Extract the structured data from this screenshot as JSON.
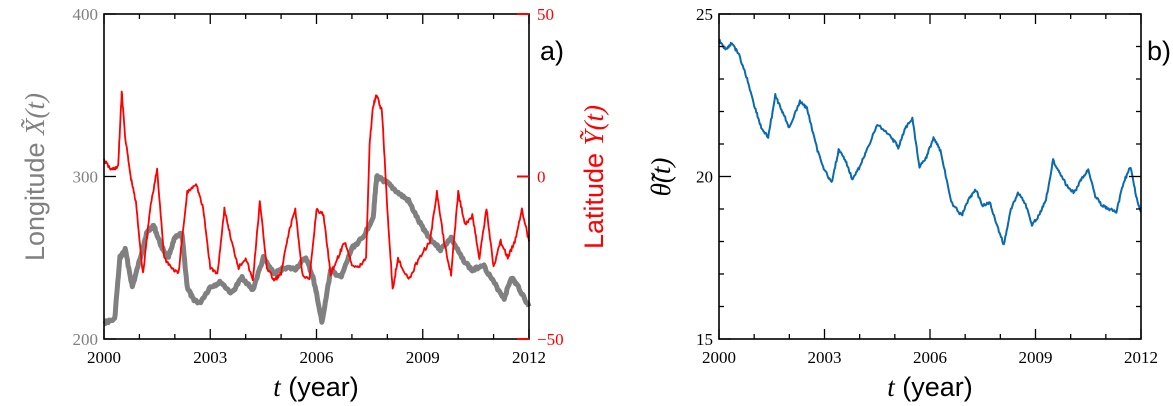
{
  "chart_data": [
    {
      "type": "line",
      "panel_label": "a)",
      "xlim": [
        2000,
        2012
      ],
      "x_ticks": [
        "2000",
        "2003",
        "2006",
        "2009",
        "2012"
      ],
      "xlabel": {
        "var": "t",
        "text": " (year)"
      },
      "y_left": {
        "label_text": "Longitude ",
        "label_math": "X̃(t)",
        "lim": [
          200,
          400
        ],
        "ticks": [
          "200",
          "300",
          "400"
        ],
        "color": "#808080"
      },
      "y_right": {
        "label_text": "Latitude ",
        "label_math": "Ỹ(t)",
        "lim": [
          -50,
          50
        ],
        "ticks": [
          "−50",
          "0",
          "50"
        ],
        "color": "#ff0000"
      },
      "series": [
        {
          "color": "#808080",
          "axis": "left",
          "x": [
            2000.0,
            2000.3,
            2000.45,
            2000.6,
            2000.8,
            2001.0,
            2001.2,
            2001.4,
            2001.6,
            2001.8,
            2002.0,
            2002.2,
            2002.35,
            2002.5,
            2002.7,
            2003.0,
            2003.3,
            2003.6,
            2003.9,
            2004.2,
            2004.5,
            2004.8,
            2005.1,
            2005.4,
            2005.7,
            2005.9,
            2006.0,
            2006.15,
            2006.4,
            2006.7,
            2007.0,
            2007.3,
            2007.6,
            2007.7,
            2007.85,
            2008.0,
            2008.3,
            2008.6,
            2008.9,
            2009.2,
            2009.5,
            2009.8,
            2010.1,
            2010.4,
            2010.7,
            2011.0,
            2011.3,
            2011.5,
            2011.7,
            2012.0
          ],
          "values": [
            210,
            212,
            250,
            255,
            232,
            248,
            265,
            270,
            258,
            250,
            262,
            265,
            232,
            225,
            222,
            232,
            235,
            228,
            238,
            230,
            250,
            240,
            244,
            243,
            250,
            238,
            228,
            210,
            242,
            238,
            256,
            262,
            275,
            300,
            298,
            296,
            290,
            285,
            272,
            262,
            255,
            262,
            250,
            242,
            246,
            235,
            225,
            238,
            232,
            220
          ]
        },
        {
          "color": "#ff0000",
          "axis": "right",
          "x": [
            2000.0,
            2000.2,
            2000.4,
            2000.5,
            2000.6,
            2000.75,
            2000.9,
            2001.1,
            2001.3,
            2001.5,
            2001.7,
            2001.9,
            2002.1,
            2002.35,
            2002.6,
            2002.8,
            2003.0,
            2003.2,
            2003.4,
            2003.6,
            2003.8,
            2004.0,
            2004.2,
            2004.4,
            2004.6,
            2004.8,
            2005.0,
            2005.2,
            2005.4,
            2005.6,
            2005.8,
            2006.0,
            2006.2,
            2006.4,
            2006.6,
            2006.8,
            2007.0,
            2007.2,
            2007.4,
            2007.5,
            2007.6,
            2007.7,
            2007.85,
            2008.0,
            2008.15,
            2008.3,
            2008.6,
            2008.9,
            2009.2,
            2009.4,
            2009.6,
            2009.8,
            2010.0,
            2010.2,
            2010.4,
            2010.6,
            2010.8,
            2011.0,
            2011.2,
            2011.4,
            2011.6,
            2011.8,
            2012.0
          ],
          "values": [
            5,
            2,
            3,
            26,
            12,
            0,
            -8,
            -30,
            -10,
            2,
            -25,
            -28,
            -30,
            -5,
            -2,
            -10,
            -28,
            -30,
            -10,
            -20,
            -28,
            -25,
            -32,
            -8,
            -28,
            -32,
            -30,
            -18,
            -10,
            -30,
            -32,
            -10,
            -12,
            -30,
            -25,
            -20,
            -27,
            -28,
            -25,
            10,
            22,
            25,
            20,
            -10,
            -35,
            -25,
            -32,
            -25,
            -20,
            -5,
            -20,
            -30,
            -5,
            -15,
            -12,
            -25,
            -10,
            -28,
            -20,
            -25,
            -20,
            -10,
            -20
          ]
        }
      ]
    },
    {
      "type": "line",
      "panel_label": "b)",
      "xlim": [
        2000,
        2012
      ],
      "x_ticks": [
        "2000",
        "2003",
        "2006",
        "2009",
        "2012"
      ],
      "xlabel": {
        "var": "t",
        "text": " (year)"
      },
      "ylabel": "θ̃(t)",
      "ylim": [
        15,
        25
      ],
      "y_ticks": [
        "15",
        "20",
        "25"
      ],
      "series": [
        {
          "color": "#0a6ab0",
          "x": [
            2000.0,
            2000.2,
            2000.35,
            2000.55,
            2000.8,
            2001.0,
            2001.2,
            2001.4,
            2001.6,
            2001.8,
            2002.0,
            2002.3,
            2002.5,
            2002.8,
            2003.0,
            2003.2,
            2003.4,
            2003.6,
            2003.8,
            2004.0,
            2004.2,
            2004.5,
            2004.9,
            2005.1,
            2005.3,
            2005.5,
            2005.7,
            2005.9,
            2006.1,
            2006.3,
            2006.6,
            2006.9,
            2007.1,
            2007.3,
            2007.5,
            2007.7,
            2007.9,
            2008.1,
            2008.3,
            2008.5,
            2008.7,
            2008.9,
            2009.1,
            2009.3,
            2009.5,
            2009.7,
            2009.9,
            2010.1,
            2010.3,
            2010.5,
            2010.7,
            2010.9,
            2011.1,
            2011.3,
            2011.5,
            2011.7,
            2011.9,
            2012.0
          ],
          "values": [
            24.2,
            23.9,
            24.1,
            23.8,
            23.0,
            22.2,
            21.5,
            21.2,
            22.5,
            22.0,
            21.5,
            22.3,
            22.1,
            20.8,
            20.2,
            19.8,
            20.8,
            20.5,
            19.9,
            20.3,
            20.8,
            21.6,
            21.2,
            20.9,
            21.5,
            21.8,
            20.3,
            20.6,
            21.2,
            20.8,
            19.2,
            18.8,
            19.3,
            19.6,
            19.1,
            19.2,
            18.5,
            17.9,
            19.0,
            19.5,
            19.2,
            18.5,
            18.8,
            19.3,
            20.5,
            20.1,
            19.7,
            19.5,
            19.9,
            20.2,
            19.4,
            19.1,
            19.0,
            18.9,
            19.8,
            20.3,
            19.2,
            18.9
          ]
        }
      ]
    }
  ]
}
